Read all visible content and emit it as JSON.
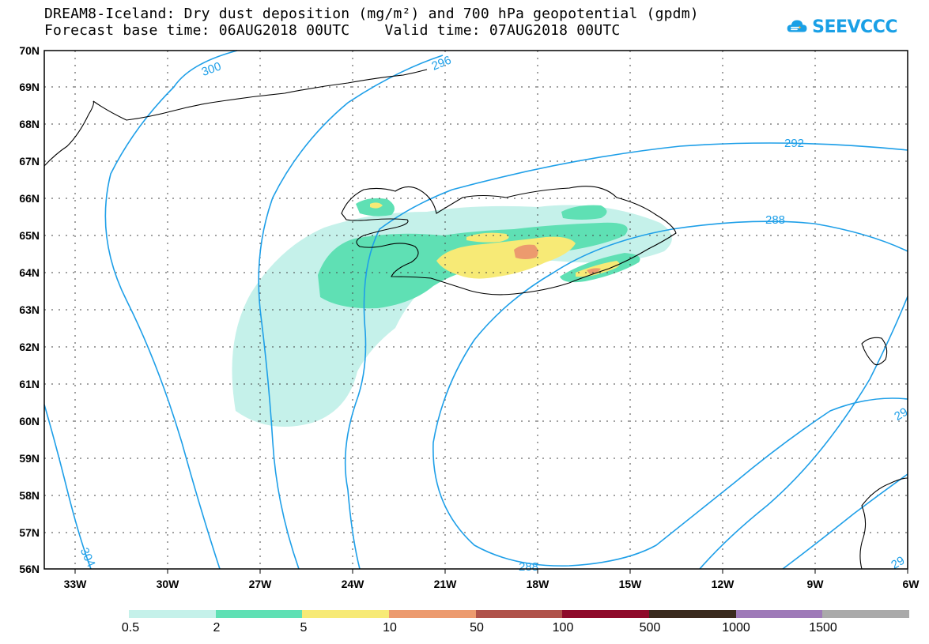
{
  "header": {
    "line1": "DREAM8-Iceland: Dry dust deposition (mg/m²) and 700 hPa geopotential (gpdm)",
    "line2": "Forecast base time: 06AUG2018 00UTC    Valid time: 07AUG2018 00UTC"
  },
  "logo": {
    "text": "SEEVCCC",
    "icon": "cloud-logo-icon",
    "color": "#1aa0e6"
  },
  "map": {
    "region": "North Atlantic / Iceland",
    "lat_range": [
      56,
      70
    ],
    "lon_range": [
      -34.5,
      -6
    ],
    "lat_labels": [
      "70N",
      "69N",
      "68N",
      "67N",
      "66N",
      "65N",
      "64N",
      "63N",
      "62N",
      "61N",
      "60N",
      "59N",
      "58N",
      "57N",
      "56N"
    ],
    "lon_labels": [
      "33W",
      "30W",
      "27W",
      "24W",
      "21W",
      "18W",
      "15W",
      "12W",
      "9W",
      "6W"
    ],
    "contour_labels": [
      "300",
      "296",
      "292",
      "288",
      "288",
      "304",
      "29",
      "29"
    ],
    "contour_color": "#1e9fe8",
    "coast_color": "#000000"
  },
  "legend": {
    "labels": [
      "0.5",
      "2",
      "5",
      "10",
      "50",
      "100",
      "500",
      "1000",
      "1500"
    ],
    "colors": [
      "#c5f1ea",
      "#5fe0b4",
      "#f7ea76",
      "#ec9a6e",
      "#b0524a",
      "#8e0a2a",
      "#3a2a1e",
      "#9e7ab8",
      "#aaaaaa"
    ]
  }
}
